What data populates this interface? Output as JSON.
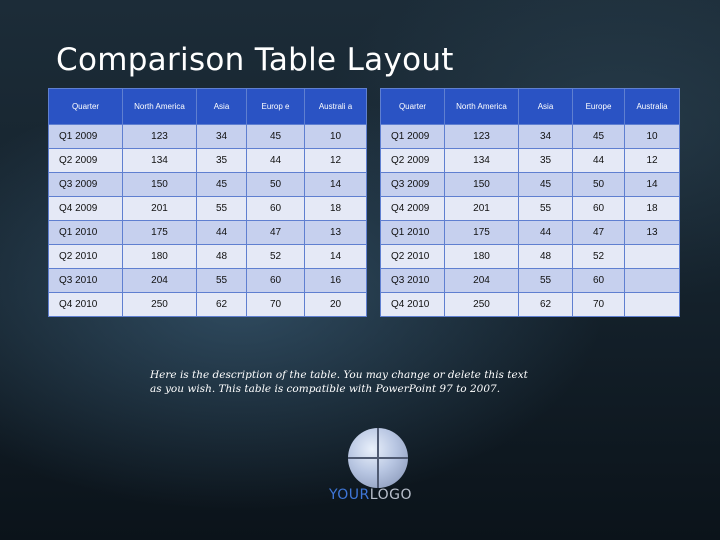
{
  "title": "Comparison Table Layout",
  "left_table": {
    "headers": [
      "Quarter",
      "North America",
      "Asia",
      "Europ e",
      "Australi a"
    ],
    "rows": [
      [
        "Q1 2009",
        "123",
        "34",
        "45",
        "10"
      ],
      [
        "Q2 2009",
        "134",
        "35",
        "44",
        "12"
      ],
      [
        "Q3 2009",
        "150",
        "45",
        "50",
        "14"
      ],
      [
        "Q4 2009",
        "201",
        "55",
        "60",
        "18"
      ],
      [
        "Q1 2010",
        "175",
        "44",
        "47",
        "13"
      ],
      [
        "Q2 2010",
        "180",
        "48",
        "52",
        "14"
      ],
      [
        "Q3 2010",
        "204",
        "55",
        "60",
        "16"
      ],
      [
        "Q4 2010",
        "250",
        "62",
        "70",
        "20"
      ]
    ]
  },
  "right_table": {
    "headers": [
      "Quarter",
      "North America",
      "Asia",
      "Europe",
      "Australia"
    ],
    "rows": [
      [
        "Q1 2009",
        "123",
        "34",
        "45",
        "10"
      ],
      [
        "Q2 2009",
        "134",
        "35",
        "44",
        "12"
      ],
      [
        "Q3 2009",
        "150",
        "45",
        "50",
        "14"
      ],
      [
        "Q4 2009",
        "201",
        "55",
        "60",
        "18"
      ],
      [
        "Q1 2010",
        "175",
        "44",
        "47",
        "13"
      ],
      [
        "Q2 2010",
        "180",
        "48",
        "52",
        ""
      ],
      [
        "Q3 2010",
        "204",
        "55",
        "60",
        ""
      ],
      [
        "Q4 2010",
        "250",
        "62",
        "70",
        ""
      ]
    ]
  },
  "description": "Here is the description of the table. You may change or delete this text as you wish. This table is compatible with PowerPoint 97 to 2007.",
  "logo": {
    "part_a": "YOUR",
    "part_b": "LOGO"
  },
  "colors": {
    "header_bg": "#2a53c4",
    "row_odd": "#c6d0ee",
    "row_even": "#e5e9f6",
    "logo_blue": "#3f77d9"
  }
}
